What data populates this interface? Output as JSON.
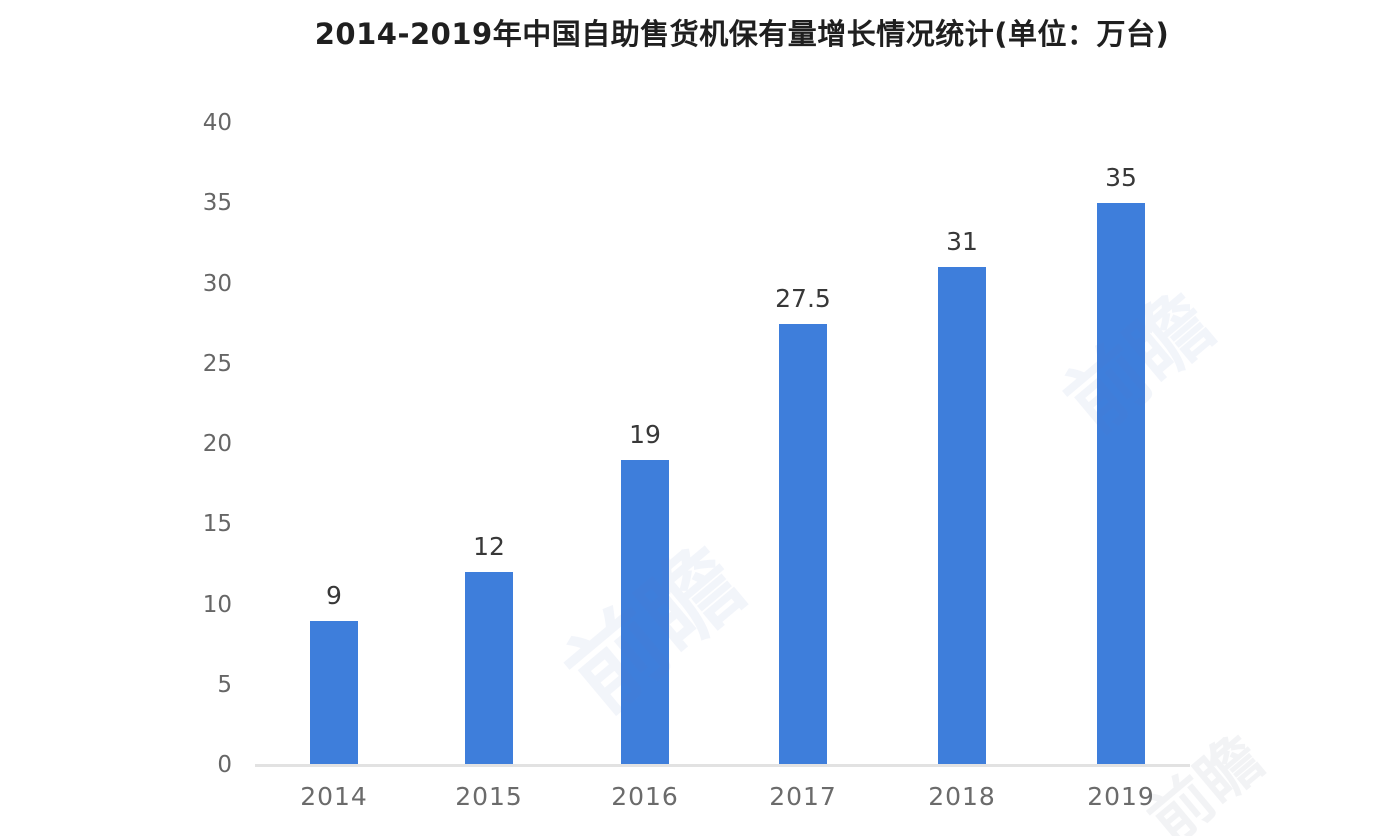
{
  "chart_data": {
    "type": "bar",
    "title": "2014-2019年中国自助售货机保有量增长情况统计(单位：万台)",
    "categories": [
      "2014",
      "2015",
      "2016",
      "2017",
      "2018",
      "2019"
    ],
    "values": [
      9,
      12,
      19,
      27.5,
      31,
      35
    ],
    "value_labels": [
      "9",
      "12",
      "19",
      "27.5",
      "31",
      "35"
    ],
    "unit": "万台",
    "xlabel": "",
    "ylabel": "",
    "ylim": [
      0,
      40
    ],
    "yticks": [
      0,
      5,
      10,
      15,
      20,
      25,
      30,
      35,
      40
    ],
    "grid": false,
    "legend": "none",
    "bar_color": "#3e7edb"
  },
  "watermark": {
    "text": "前瞻"
  },
  "colors": {
    "background": "#ffffff",
    "bar": "#3e7edb",
    "axis_line": "#e2e2e2",
    "tick_text": "#666666",
    "value_text": "#383838",
    "title_text": "#1f1f1f"
  }
}
